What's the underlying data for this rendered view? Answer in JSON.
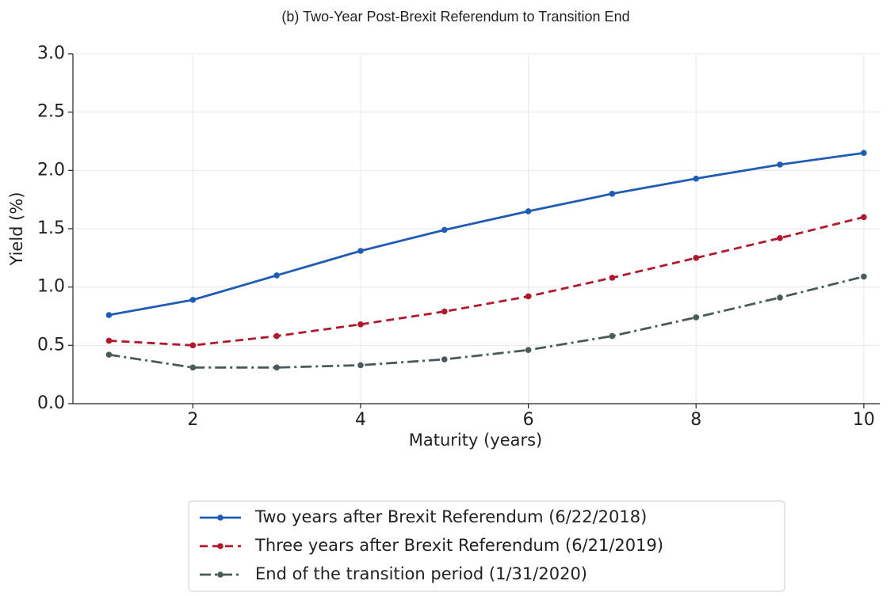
{
  "chart_data": {
    "type": "line",
    "title": "(b) Two-Year Post-Brexit Referendum to Transition End",
    "x_label": "Maturity (years)",
    "y_label": "Yield (%)",
    "x": [
      1,
      2,
      3,
      4,
      5,
      6,
      7,
      8,
      9,
      10
    ],
    "series": [
      {
        "name": "Two years after Brexit Referendum (6/22/2018)",
        "color": "#1f5cb3",
        "linestyle": "solid",
        "values": [
          0.76,
          0.89,
          1.1,
          1.31,
          1.49,
          1.65,
          1.8,
          1.93,
          2.05,
          2.15
        ]
      },
      {
        "name": "Three years after Brexit Referendum (6/21/2019)",
        "color": "#b0182e",
        "linestyle": "dashed",
        "values": [
          0.54,
          0.5,
          0.58,
          0.68,
          0.79,
          0.92,
          1.08,
          1.25,
          1.42,
          1.6
        ]
      },
      {
        "name": "End of the transition period (1/31/2020)",
        "color": "#4a5a5a",
        "linestyle": "dashdot",
        "values": [
          0.42,
          0.31,
          0.31,
          0.33,
          0.38,
          0.46,
          0.58,
          0.74,
          0.91,
          1.09
        ]
      }
    ],
    "xlim": [
      0.57,
      10.19
    ],
    "ylim": [
      0,
      3
    ],
    "xticks": [
      2,
      4,
      6,
      8,
      10
    ],
    "yticks": [
      {
        "value": 0,
        "label": "0.0"
      },
      {
        "value": 0.5,
        "label": "0.5"
      },
      {
        "value": 1,
        "label": "1.0"
      },
      {
        "value": 1.5,
        "label": "1.5"
      },
      {
        "value": 2,
        "label": "2.0"
      },
      {
        "value": 2.5,
        "label": "2.5"
      },
      {
        "value": 3,
        "label": "3.0"
      }
    ],
    "grid": true,
    "legend": "bottom"
  }
}
